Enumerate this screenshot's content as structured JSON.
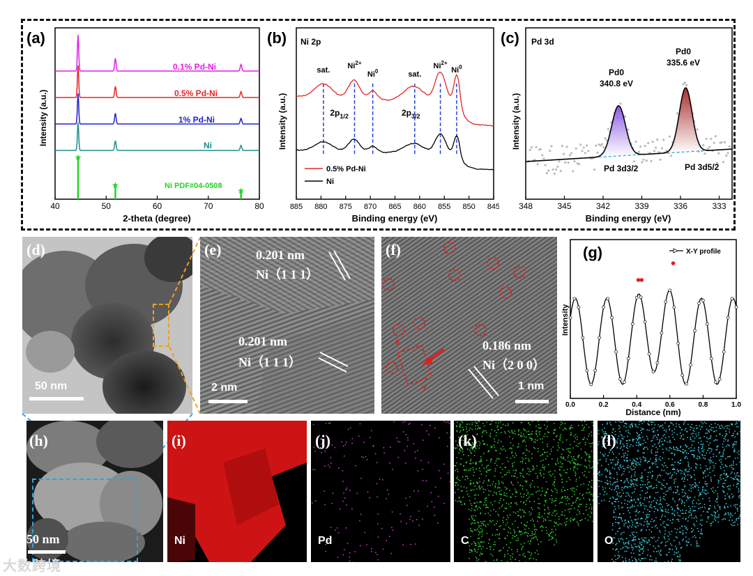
{
  "figure": {
    "colors": {
      "magenta": "#e31ee3",
      "red": "#e32626",
      "blue": "#2222cc",
      "teal": "#1d8c8c",
      "green": "#22d422",
      "purple": "#9a5ff0",
      "darkred": "#a01818",
      "cyan": "#3bc6d6"
    }
  },
  "panel_a": {
    "letter": "(a)",
    "xlabel": "2-theta (degree)",
    "ylabel": "Intensity (a.u.)",
    "xticks": [
      "40",
      "50",
      "60",
      "70",
      "80"
    ],
    "curves": [
      {
        "label": "0.1% Pd-Ni",
        "color": "#e31ee3"
      },
      {
        "label": "0.5% Pd-Ni",
        "color": "#e32626"
      },
      {
        "label": "1% Pd-Ni",
        "color": "#2222cc"
      },
      {
        "label": "Ni",
        "color": "#1d8c8c"
      }
    ],
    "peaks_2theta": [
      44.5,
      51.8,
      76.4
    ],
    "reference_label": "Ni PDF#04-0508"
  },
  "panel_b": {
    "letter": "(b)",
    "title": "Ni 2p",
    "xlabel": "Binding energy (eV)",
    "ylabel": "Intensity (a.u.)",
    "xticks": [
      "885",
      "880",
      "875",
      "870",
      "865",
      "860",
      "855",
      "850",
      "845"
    ],
    "annotations": [
      "sat.",
      "Ni2+",
      "Ni0",
      "sat.",
      "Ni2+",
      "Ni0"
    ],
    "orbital_labels": [
      "2p1/2",
      "2p3/2"
    ],
    "dashed_line_energies": [
      879.5,
      873.2,
      869.5,
      861.0,
      855.8,
      852.5
    ],
    "legend": [
      {
        "label": "0.5% Pd-Ni",
        "color": "#e32626"
      },
      {
        "label": "Ni",
        "color": "#000000"
      }
    ]
  },
  "panel_c": {
    "letter": "(c)",
    "title": "Pd 3d",
    "xlabel": "Binding energy (eV)",
    "ylabel": "Intensity (a.u.)",
    "xticks": [
      "348",
      "345",
      "342",
      "339",
      "336",
      "333"
    ],
    "peak1": {
      "name": "Pd0",
      "energy": "340.8 eV",
      "component": "Pd 3d3/2"
    },
    "peak2": {
      "name": "Pd0",
      "energy": "335.6 eV",
      "component": "Pd 3d5/2"
    }
  },
  "panel_d": {
    "letter": "(d)",
    "scale": "50 nm"
  },
  "panel_e": {
    "letter": "(e)",
    "scale": "2 nm",
    "fringe1": {
      "spacing": "0.201 nm",
      "plane": "Ni（1 1 1）"
    },
    "fringe2": {
      "spacing": "0.201 nm",
      "plane": "Ni（1 1 1）"
    }
  },
  "panel_f": {
    "letter": "(f)",
    "scale": "1 nm",
    "fringe": {
      "spacing": "0.186 nm",
      "plane": "Ni（2 0 0）"
    },
    "marker_x": "X",
    "marker_y": "Y"
  },
  "panel_g": {
    "letter": "(g)",
    "legend": "X-Y profile",
    "xlabel": "Distance (nm)",
    "ylabel": "Intensity",
    "xticks": [
      "0.0",
      "0.2",
      "0.4",
      "0.6",
      "0.8",
      "1.0"
    ]
  },
  "panel_h": {
    "letter": "(h)",
    "scale": "50 nm"
  },
  "eds": [
    {
      "letter": "(i)",
      "element": "Ni",
      "color": "#e01818"
    },
    {
      "letter": "(j)",
      "element": "Pd",
      "color": "#c23ac8"
    },
    {
      "letter": "(k)",
      "element": "C",
      "color": "#2ec82e"
    },
    {
      "letter": "(l)",
      "element": "O",
      "color": "#36c3d2"
    }
  ],
  "watermark": "大数跨境"
}
